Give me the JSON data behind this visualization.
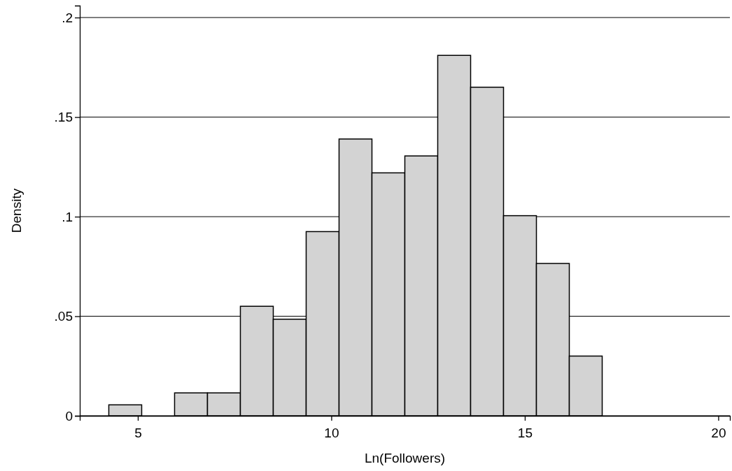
{
  "chart_data": {
    "type": "histogram",
    "xlabel": "Ln(Followers)",
    "ylabel": "Density",
    "bins": [
      4.25,
      5.1,
      5.95,
      6.8,
      7.65,
      8.5,
      9.35,
      10.2,
      11.05,
      11.9,
      12.75,
      13.6,
      14.45,
      15.3,
      16.15,
      17.0
    ],
    "values": [
      0.0055,
      0,
      0.0115,
      0.0115,
      0.055,
      0.0485,
      0.0925,
      0.139,
      0.122,
      0.1305,
      0.181,
      0.165,
      0.1005,
      0.0765,
      0.03
    ],
    "color": "#d3d3d3",
    "xlim": [
      3.5,
      20.3
    ],
    "xticks": [
      5,
      10,
      15,
      20
    ],
    "ylim": [
      0,
      0.206
    ],
    "yticks": [
      {
        "value": 0,
        "label": "0"
      },
      {
        "value": 0.05,
        "label": ".05"
      },
      {
        "value": 0.1,
        "label": ".1"
      },
      {
        "value": 0.15,
        "label": ".15"
      },
      {
        "value": 0.2,
        "label": ".2"
      }
    ],
    "grid": "y"
  }
}
